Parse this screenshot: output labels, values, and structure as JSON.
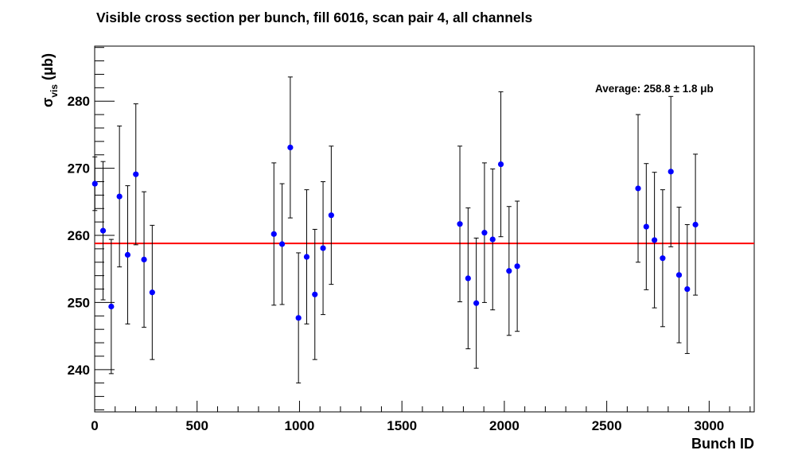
{
  "chart_data": {
    "type": "scatter",
    "title": "Visible cross section per bunch, fill 6016, scan pair 4, all channels",
    "xlabel": "Bunch ID",
    "ylabel": {
      "base": "σ",
      "subscript": "vis",
      "unit": "(μb)"
    },
    "xlim": [
      0,
      3220
    ],
    "ylim": [
      233.7,
      288.2
    ],
    "xticks": [
      0,
      500,
      1000,
      1500,
      2000,
      2500,
      3000
    ],
    "yticks": [
      240,
      250,
      260,
      270,
      280
    ],
    "grid": false,
    "legend": "none",
    "average_line": {
      "value": 258.8,
      "color": "#ff0000"
    },
    "annotation": "Average: 258.8 ± 1.8 μb",
    "marker_color": "#0000ff",
    "series": [
      {
        "points": [
          {
            "x": 1,
            "y": 267.7,
            "err": 4.0
          },
          {
            "x": 41,
            "y": 260.7,
            "err": 10.3
          },
          {
            "x": 81,
            "y": 249.4,
            "err": 10.0
          },
          {
            "x": 121,
            "y": 265.8,
            "err": 10.5
          },
          {
            "x": 161,
            "y": 257.1,
            "err": 10.3
          },
          {
            "x": 201,
            "y": 269.1,
            "err": 10.5
          },
          {
            "x": 241,
            "y": 256.4,
            "err": 10.1
          },
          {
            "x": 281,
            "y": 251.5,
            "err": 10.0
          },
          {
            "x": 875,
            "y": 260.2,
            "err": 10.6
          },
          {
            "x": 915,
            "y": 258.7,
            "err": 9.0
          },
          {
            "x": 955,
            "y": 273.1,
            "err": 10.5
          },
          {
            "x": 995,
            "y": 247.7,
            "err": 9.7
          },
          {
            "x": 1035,
            "y": 256.8,
            "err": 10.0
          },
          {
            "x": 1075,
            "y": 251.2,
            "err": 9.7
          },
          {
            "x": 1115,
            "y": 258.1,
            "err": 9.9
          },
          {
            "x": 1155,
            "y": 263.0,
            "err": 10.3
          },
          {
            "x": 1783,
            "y": 261.7,
            "err": 11.6
          },
          {
            "x": 1823,
            "y": 253.6,
            "err": 10.5
          },
          {
            "x": 1863,
            "y": 249.9,
            "err": 9.7
          },
          {
            "x": 1903,
            "y": 260.4,
            "err": 10.4
          },
          {
            "x": 1943,
            "y": 259.4,
            "err": 10.5
          },
          {
            "x": 1983,
            "y": 270.6,
            "err": 10.8
          },
          {
            "x": 2023,
            "y": 254.7,
            "err": 9.6
          },
          {
            "x": 2063,
            "y": 255.4,
            "err": 9.7
          },
          {
            "x": 2653,
            "y": 267.0,
            "err": 11.0
          },
          {
            "x": 2693,
            "y": 261.3,
            "err": 9.4
          },
          {
            "x": 2733,
            "y": 259.3,
            "err": 10.1
          },
          {
            "x": 2773,
            "y": 256.6,
            "err": 10.2
          },
          {
            "x": 2813,
            "y": 269.5,
            "err": 11.2
          },
          {
            "x": 2853,
            "y": 254.1,
            "err": 10.1
          },
          {
            "x": 2893,
            "y": 252.0,
            "err": 9.6
          },
          {
            "x": 2933,
            "y": 261.6,
            "err": 10.5
          }
        ]
      }
    ]
  }
}
